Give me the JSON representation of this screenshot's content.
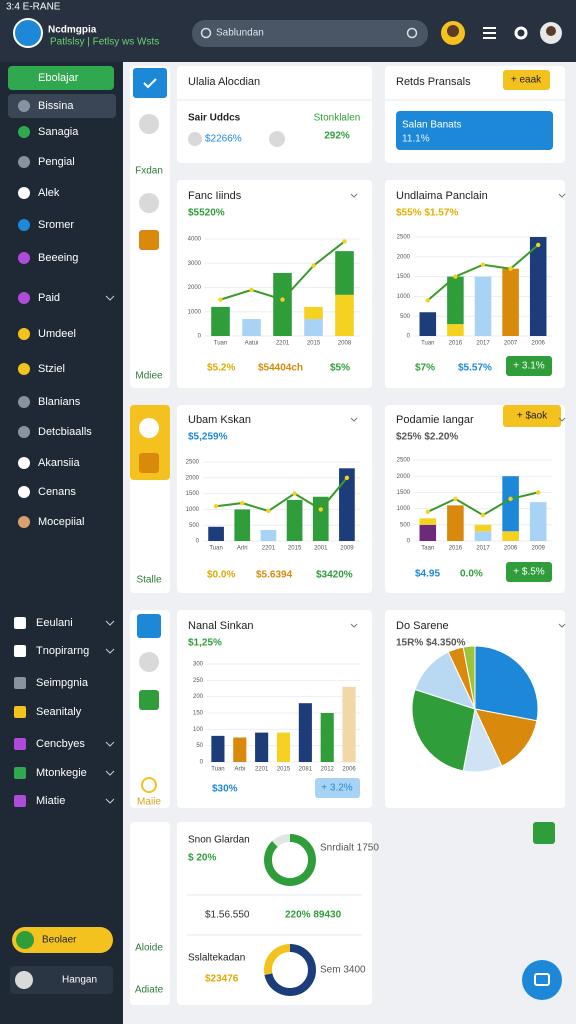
{
  "status_bar": {
    "time": "3:4 E-RANE"
  },
  "header": {
    "title": "Ncdmgpia",
    "subtitle": "Patlslsy | Fetlsy ws Wsts",
    "search": "Sablundan"
  },
  "sidebar": {
    "items": [
      "Ebolajar",
      "Bissina",
      "Sanagia",
      "Pengial",
      "Alek",
      "Sromer",
      "Beeeing",
      "Paid",
      "Umdeel",
      "Stziel",
      "Blanians",
      "Detcbiaalls",
      "Akansiia",
      "Cenans",
      "Mocepiial"
    ],
    "lower_items": [
      "Eeulani",
      "Tnopirarng",
      "Seimpgnia",
      "Seanitaly",
      "Cencbyes",
      "Mtonkegie",
      "Miatie"
    ],
    "button": "Beolaer",
    "user": "Hangan"
  },
  "rail": {
    "labels": [
      "Fxdan",
      "Mdiee",
      "Stalle",
      "Maiie",
      "Aloide",
      "Adiate"
    ]
  },
  "cards": [
    {
      "title": "Ulalia Alocdian",
      "name": "Sair Uddcs",
      "label": "Stonklalen",
      "value": "292%",
      "sub": "$2266%"
    },
    {
      "title": "Retds Pransals",
      "badge": "+ eaak",
      "box_title": "Salan Banats",
      "box_value": "11.1%"
    },
    {
      "title": "Fanc Iiinds",
      "value": "$5520%",
      "footer": [
        "$5.2%",
        "$54404ch",
        "$5%"
      ],
      "chart_data": {
        "type": "bar",
        "categories": [
          "Tuan",
          "Aatui",
          "2201",
          "2015",
          "2008"
        ],
        "ylim": [
          0,
          4000
        ],
        "yticks": [
          0,
          1000,
          2000,
          3000,
          4000
        ],
        "series": [
          {
            "color": "#a9d3f5",
            "values": [
              0,
              700,
              0,
              700,
              0
            ]
          },
          {
            "color": "#f4d21f",
            "values": [
              0,
              0,
              0,
              500,
              1700
            ]
          },
          {
            "color": "#2f9e3a",
            "values": [
              1200,
              0,
              2600,
              0,
              1800
            ]
          },
          {
            "type": "line",
            "color": "#3a9a2a",
            "values": [
              1500,
              1900,
              1500,
              2900,
              3900
            ]
          }
        ]
      }
    },
    {
      "title": "Undlaima Panclain",
      "value": "$55% $1.57%",
      "footer": [
        "$7%",
        "$5.57%"
      ],
      "button": "+ 3.1%",
      "chart_data": {
        "type": "bar",
        "categories": [
          "Tuan",
          "2016",
          "2017",
          "2007",
          "2006"
        ],
        "ylim": [
          0,
          2500
        ],
        "yticks": [
          0,
          500,
          1000,
          1500,
          2000,
          2500
        ],
        "series": [
          {
            "color": "#1d3d7a",
            "values": [
              600,
              0,
              0,
              0,
              2500
            ]
          },
          {
            "color": "#f4d21f",
            "values": [
              0,
              300,
              0,
              0,
              0
            ]
          },
          {
            "color": "#2f9e3a",
            "values": [
              0,
              1200,
              0,
              0,
              0
            ]
          },
          {
            "color": "#a9d3f5",
            "values": [
              0,
              0,
              1500,
              0,
              0
            ]
          },
          {
            "color": "#d98a0c",
            "values": [
              0,
              0,
              0,
              1700,
              0
            ]
          },
          {
            "type": "line",
            "color": "#3a9a2a",
            "values": [
              900,
              1500,
              1800,
              1700,
              2300
            ]
          }
        ]
      }
    },
    {
      "title": "Ubam Kskan",
      "value": "$5,259%",
      "footer": [
        "$0.0%",
        "$5.6394",
        "$3420%"
      ],
      "chart_data": {
        "type": "bar",
        "categories": [
          "Tuan",
          "Arlri",
          "2201",
          "2015",
          "2001",
          "2009"
        ],
        "ylim": [
          0,
          2500
        ],
        "yticks": [
          0,
          500,
          1000,
          1500,
          2000,
          2500
        ],
        "series": [
          {
            "color": "#1d3d7a",
            "values": [
              450,
              0,
              0,
              0,
              0,
              2300
            ]
          },
          {
            "color": "#a9d3f5",
            "values": [
              0,
              0,
              350,
              0,
              0,
              0
            ]
          },
          {
            "color": "#2f9e3a",
            "values": [
              0,
              1000,
              0,
              1300,
              1400,
              0
            ]
          },
          {
            "type": "line",
            "color": "#3a9a2a",
            "values": [
              1100,
              1200,
              950,
              1500,
              1000,
              2000
            ]
          }
        ]
      }
    },
    {
      "title": "Podamie Iangar",
      "value": "$25% $2.20%",
      "badge": "+ $aok",
      "footer": [
        "$4.95",
        "0.0%"
      ],
      "button": "+ $.5%",
      "chart_data": {
        "type": "bar",
        "categories": [
          "Taan",
          "2016",
          "2017",
          "2006",
          "2009"
        ],
        "ylim": [
          0,
          2500
        ],
        "yticks": [
          0,
          500,
          1000,
          1500,
          2000,
          2500
        ],
        "series": [
          {
            "color": "#6b2a7a",
            "values": [
              500,
              0,
              0,
              0,
              0
            ]
          },
          {
            "color": "#d98a0c",
            "values": [
              0,
              1100,
              0,
              0,
              0
            ]
          },
          {
            "color": "#a9d3f5",
            "values": [
              0,
              0,
              300,
              0,
              1200
            ]
          },
          {
            "color": "#f4d21f",
            "values": [
              200,
              0,
              200,
              300,
              0
            ]
          },
          {
            "color": "#1e88d8",
            "values": [
              0,
              0,
              0,
              1700,
              0
            ]
          },
          {
            "type": "line",
            "color": "#3a9a2a",
            "values": [
              900,
              1300,
              800,
              1300,
              1500
            ]
          }
        ]
      }
    },
    {
      "title": "Nanal Sinkan",
      "value": "$1,25%",
      "footer": [
        "$30%"
      ],
      "button": "+ 3.2%",
      "chart_data": {
        "type": "bar",
        "categories": [
          "Tuan",
          "Arbi",
          "2201",
          "2015",
          "2081",
          "2012",
          "2006"
        ],
        "ylim": [
          0,
          300
        ],
        "yticks": [
          0,
          50,
          100,
          150,
          200,
          250,
          300
        ],
        "series": [
          {
            "colors": [
              "#1d3d7a",
              "#d98a0c",
              "#1d3d7a",
              "#f4d21f",
              "#1d3d7a",
              "#2f9e3a",
              "#f2d7a8"
            ],
            "values": [
              80,
              75,
              90,
              90,
              180,
              150,
              230
            ]
          }
        ]
      }
    },
    {
      "title": "Do Sarene",
      "value": "15R% $4.350%",
      "chart_data": {
        "type": "pie",
        "values": [
          28,
          15,
          10,
          27,
          13,
          4,
          3
        ],
        "colors": [
          "#1e88d8",
          "#d98a0c",
          "#cfe3f4",
          "#2f9e3a",
          "#b9d9f2",
          "#d98a0c",
          "#9cc43a"
        ]
      }
    },
    {
      "title": "Snon Glardan",
      "value": "$ 20%",
      "donut_label": "Snrdialt 1750",
      "row": [
        "$1.56.550",
        "220% 89430"
      ],
      "title2": "Sslaltekadan",
      "value2": "$23476",
      "donut2_label": "Sem 3400",
      "chart_data": [
        {
          "type": "donut",
          "values": [
            88,
            12
          ],
          "colors": [
            "#2f9e3a",
            "#dfe7e0"
          ]
        },
        {
          "type": "donut",
          "values": [
            72,
            28
          ],
          "colors": [
            "#1d3d7a",
            "#f4c21f"
          ]
        }
      ]
    }
  ]
}
